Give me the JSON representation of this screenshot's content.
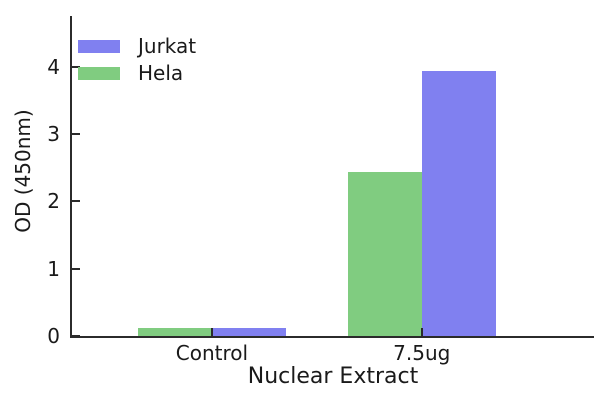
{
  "figure": {
    "background": "#ffffff",
    "axis_color": "#2b2b2b",
    "text_color": "#1a1a1a"
  },
  "chart_data": {
    "type": "bar",
    "title": "",
    "xlabel": "Nuclear Extract",
    "ylabel": "OD (450nm)",
    "categories": [
      "Control",
      "7.5ug"
    ],
    "series": [
      {
        "name": "Jurkat",
        "color": "#8080f0",
        "values": [
          0.12,
          3.93
        ]
      },
      {
        "name": "Hela",
        "color": "#80cc80",
        "values": [
          0.12,
          2.44
        ]
      }
    ],
    "bar_order_left_to_right": [
      "Hela",
      "Jurkat"
    ],
    "ylim": [
      0,
      4.75
    ],
    "yticks": [
      0,
      1,
      2,
      3,
      4
    ],
    "grid": false,
    "legend_position": "upper left",
    "spines": [
      "left",
      "bottom"
    ],
    "tick_direction": "in"
  }
}
